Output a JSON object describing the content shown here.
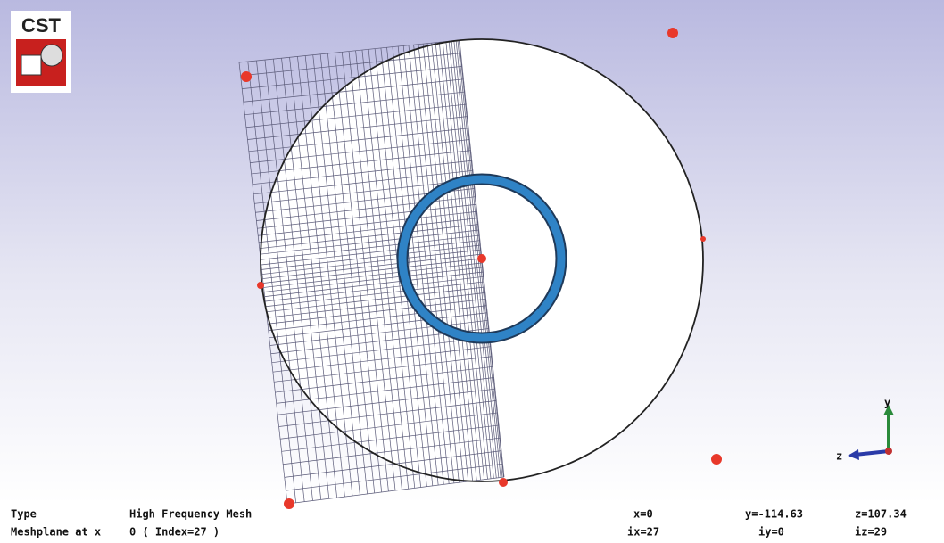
{
  "logo": {
    "text": "CST"
  },
  "axes": {
    "y": "y",
    "z": "z"
  },
  "status": {
    "type_label": "Type",
    "type_value": "High Frequency Mesh",
    "meshplane_label": "Meshplane at x",
    "meshplane_value": "0 ( Index=27 )",
    "x": "x=0",
    "y": "y=-114.63",
    "z": "z=107.34",
    "ix": "ix=27",
    "iy": "iy=0",
    "iz": "iz=29"
  }
}
